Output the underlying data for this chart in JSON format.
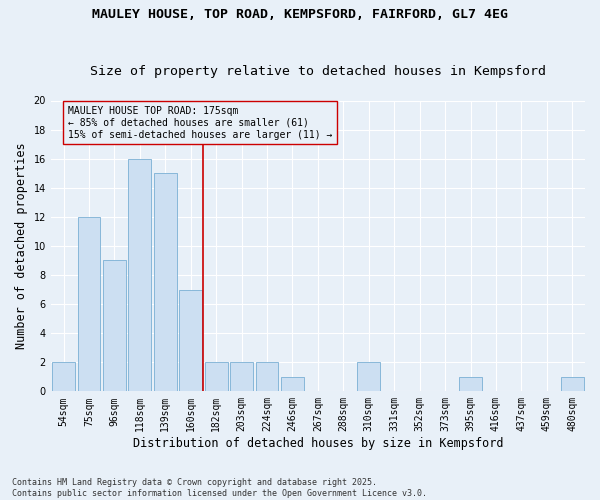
{
  "title_line1": "MAULEY HOUSE, TOP ROAD, KEMPSFORD, FAIRFORD, GL7 4EG",
  "title_line2": "Size of property relative to detached houses in Kempsford",
  "xlabel": "Distribution of detached houses by size in Kempsford",
  "ylabel": "Number of detached properties",
  "categories": [
    "54sqm",
    "75sqm",
    "96sqm",
    "118sqm",
    "139sqm",
    "160sqm",
    "182sqm",
    "203sqm",
    "224sqm",
    "246sqm",
    "267sqm",
    "288sqm",
    "310sqm",
    "331sqm",
    "352sqm",
    "373sqm",
    "395sqm",
    "416sqm",
    "437sqm",
    "459sqm",
    "480sqm"
  ],
  "values": [
    2,
    12,
    9,
    16,
    15,
    7,
    2,
    2,
    2,
    1,
    0,
    0,
    2,
    0,
    0,
    0,
    1,
    0,
    0,
    0,
    1
  ],
  "bar_color": "#ccdff2",
  "bar_edge_color": "#7aafd4",
  "reference_line_color": "#cc0000",
  "annotation_text": "MAULEY HOUSE TOP ROAD: 175sqm\n← 85% of detached houses are smaller (61)\n15% of semi-detached houses are larger (11) →",
  "annotation_box_color": "#cc0000",
  "ylim": [
    0,
    20
  ],
  "yticks": [
    0,
    2,
    4,
    6,
    8,
    10,
    12,
    14,
    16,
    18,
    20
  ],
  "background_color": "#e8f0f8",
  "grid_color": "#ffffff",
  "footer_text": "Contains HM Land Registry data © Crown copyright and database right 2025.\nContains public sector information licensed under the Open Government Licence v3.0.",
  "title_fontsize": 9.5,
  "subtitle_fontsize": 9.5,
  "axis_label_fontsize": 8.5,
  "tick_fontsize": 7,
  "annotation_fontsize": 7,
  "footer_fontsize": 6
}
